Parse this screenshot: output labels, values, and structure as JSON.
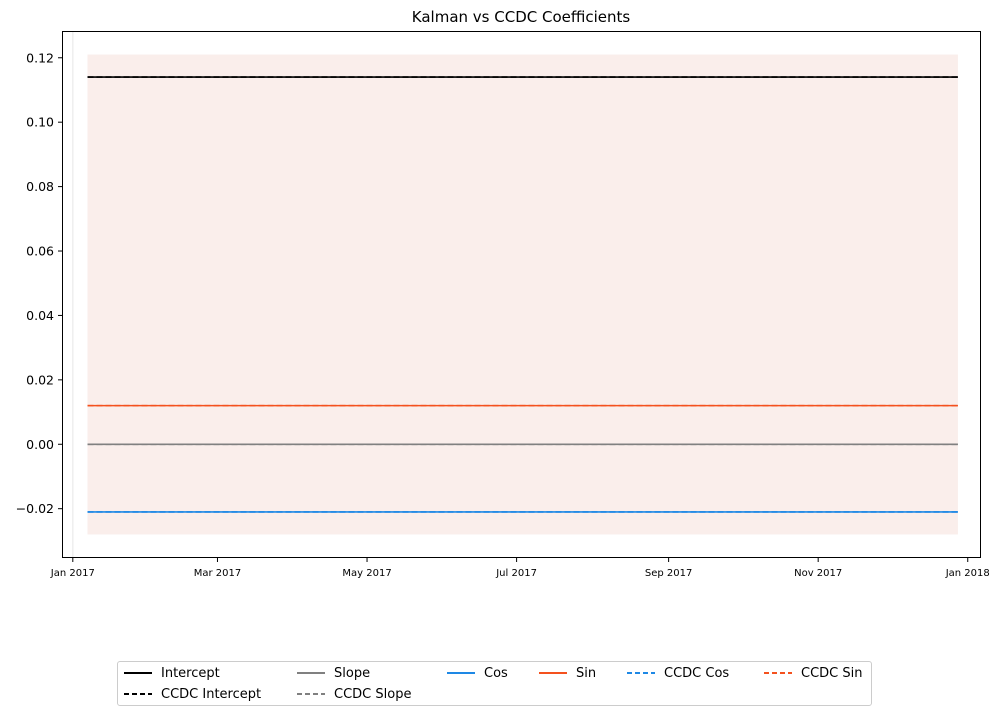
{
  "chart_data": {
    "type": "line",
    "title": "Kalman vs CCDC Coefficients",
    "xlabel": "",
    "ylabel": "",
    "x_range": [
      "2017-01-07",
      "2017-12-28"
    ],
    "xlim": [
      "2016-12-28",
      "2018-01-06"
    ],
    "ylim": [
      -0.035,
      0.128
    ],
    "x_ticks": [
      {
        "date": "2017-01-01",
        "label": "Jan 2017"
      },
      {
        "date": "2017-03-01",
        "label": "Mar 2017"
      },
      {
        "date": "2017-05-01",
        "label": "May 2017"
      },
      {
        "date": "2017-07-01",
        "label": "Jul 2017"
      },
      {
        "date": "2017-09-01",
        "label": "Sep 2017"
      },
      {
        "date": "2017-11-01",
        "label": "Nov 2017"
      },
      {
        "date": "2018-01-01",
        "label": "Jan 2018"
      }
    ],
    "y_ticks": [
      {
        "value": 0.12,
        "label": "0.12"
      },
      {
        "value": 0.1,
        "label": "0.10"
      },
      {
        "value": 0.08,
        "label": "0.08"
      },
      {
        "value": 0.06,
        "label": "0.06"
      },
      {
        "value": 0.04,
        "label": "0.04"
      },
      {
        "value": 0.02,
        "label": "0.02"
      },
      {
        "value": 0.0,
        "label": "0.00"
      },
      {
        "value": -0.02,
        "label": "−0.02"
      }
    ],
    "shaded_band": {
      "from": -0.028,
      "to": 0.121,
      "color": "#faeeeb"
    },
    "vertical_marker": {
      "date": "2017-01-01",
      "color": "#eeeeee"
    },
    "series": [
      {
        "name": "Intercept",
        "value": 0.114,
        "color": "#000000",
        "dash": "solid"
      },
      {
        "name": "CCDC Intercept",
        "value": 0.114,
        "color": "#000000",
        "dash": "dashed"
      },
      {
        "name": "Slope",
        "value": 0.0,
        "color": "#808080",
        "dash": "solid"
      },
      {
        "name": "CCDC Slope",
        "value": 0.0,
        "color": "#808080",
        "dash": "dashed"
      },
      {
        "name": "Cos",
        "value": -0.021,
        "color": "#1e88e5",
        "dash": "solid"
      },
      {
        "name": "Sin",
        "value": 0.012,
        "color": "#f4511e",
        "dash": "solid"
      },
      {
        "name": "CCDC Cos",
        "value": -0.021,
        "color": "#1e88e5",
        "dash": "dashed"
      },
      {
        "name": "CCDC Sin",
        "value": 0.012,
        "color": "#f4511e",
        "dash": "dashed"
      }
    ],
    "grid": false,
    "legend_position": "bottom-center"
  }
}
